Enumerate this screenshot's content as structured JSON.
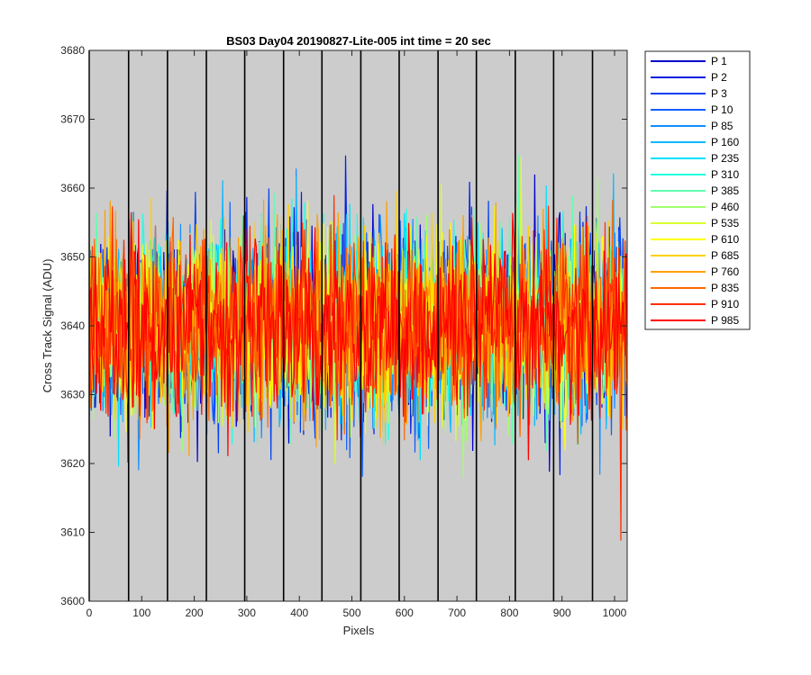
{
  "chart_data": {
    "type": "line",
    "title": "BS03 Day04 20190827-Lite-005 int time = 20 sec",
    "xlabel": "Pixels",
    "ylabel": "Cross Track Signal (ADU)",
    "xlim": [
      0,
      1024
    ],
    "ylim": [
      3600,
      3680
    ],
    "x_ticks": [
      0,
      100,
      200,
      300,
      400,
      500,
      600,
      700,
      800,
      900,
      1000
    ],
    "y_ticks": [
      3600,
      3610,
      3620,
      3630,
      3640,
      3650,
      3660,
      3670,
      3680
    ],
    "plot_background": "#cccccc",
    "grid": false,
    "column_boundaries": [
      0,
      75,
      149,
      223,
      296,
      370,
      443,
      517,
      590,
      664,
      737,
      811,
      884,
      958
    ],
    "legend_position": "outside-right",
    "noise": {
      "mean": 3640,
      "std_dev": 6.5,
      "range": [
        3605,
        3676
      ]
    },
    "series": [
      {
        "name": "P 1",
        "color": "#0000cc"
      },
      {
        "name": "P 2",
        "color": "#0020e0"
      },
      {
        "name": "P 3",
        "color": "#0040f0"
      },
      {
        "name": "P 10",
        "color": "#1060ff"
      },
      {
        "name": "P 85",
        "color": "#1090ff"
      },
      {
        "name": "P 160",
        "color": "#10b8ff"
      },
      {
        "name": "P 235",
        "color": "#00e0ff"
      },
      {
        "name": "P 310",
        "color": "#20ffe0"
      },
      {
        "name": "P 385",
        "color": "#60ffb0"
      },
      {
        "name": "P 460",
        "color": "#a0ff70"
      },
      {
        "name": "P 535",
        "color": "#d8ff30"
      },
      {
        "name": "P 610",
        "color": "#ffff00"
      },
      {
        "name": "P 685",
        "color": "#ffd000"
      },
      {
        "name": "P 760",
        "color": "#ffa000"
      },
      {
        "name": "P 835",
        "color": "#ff6800"
      },
      {
        "name": "P 910",
        "color": "#ff3000"
      },
      {
        "name": "P 985",
        "color": "#ff0000"
      }
    ]
  }
}
